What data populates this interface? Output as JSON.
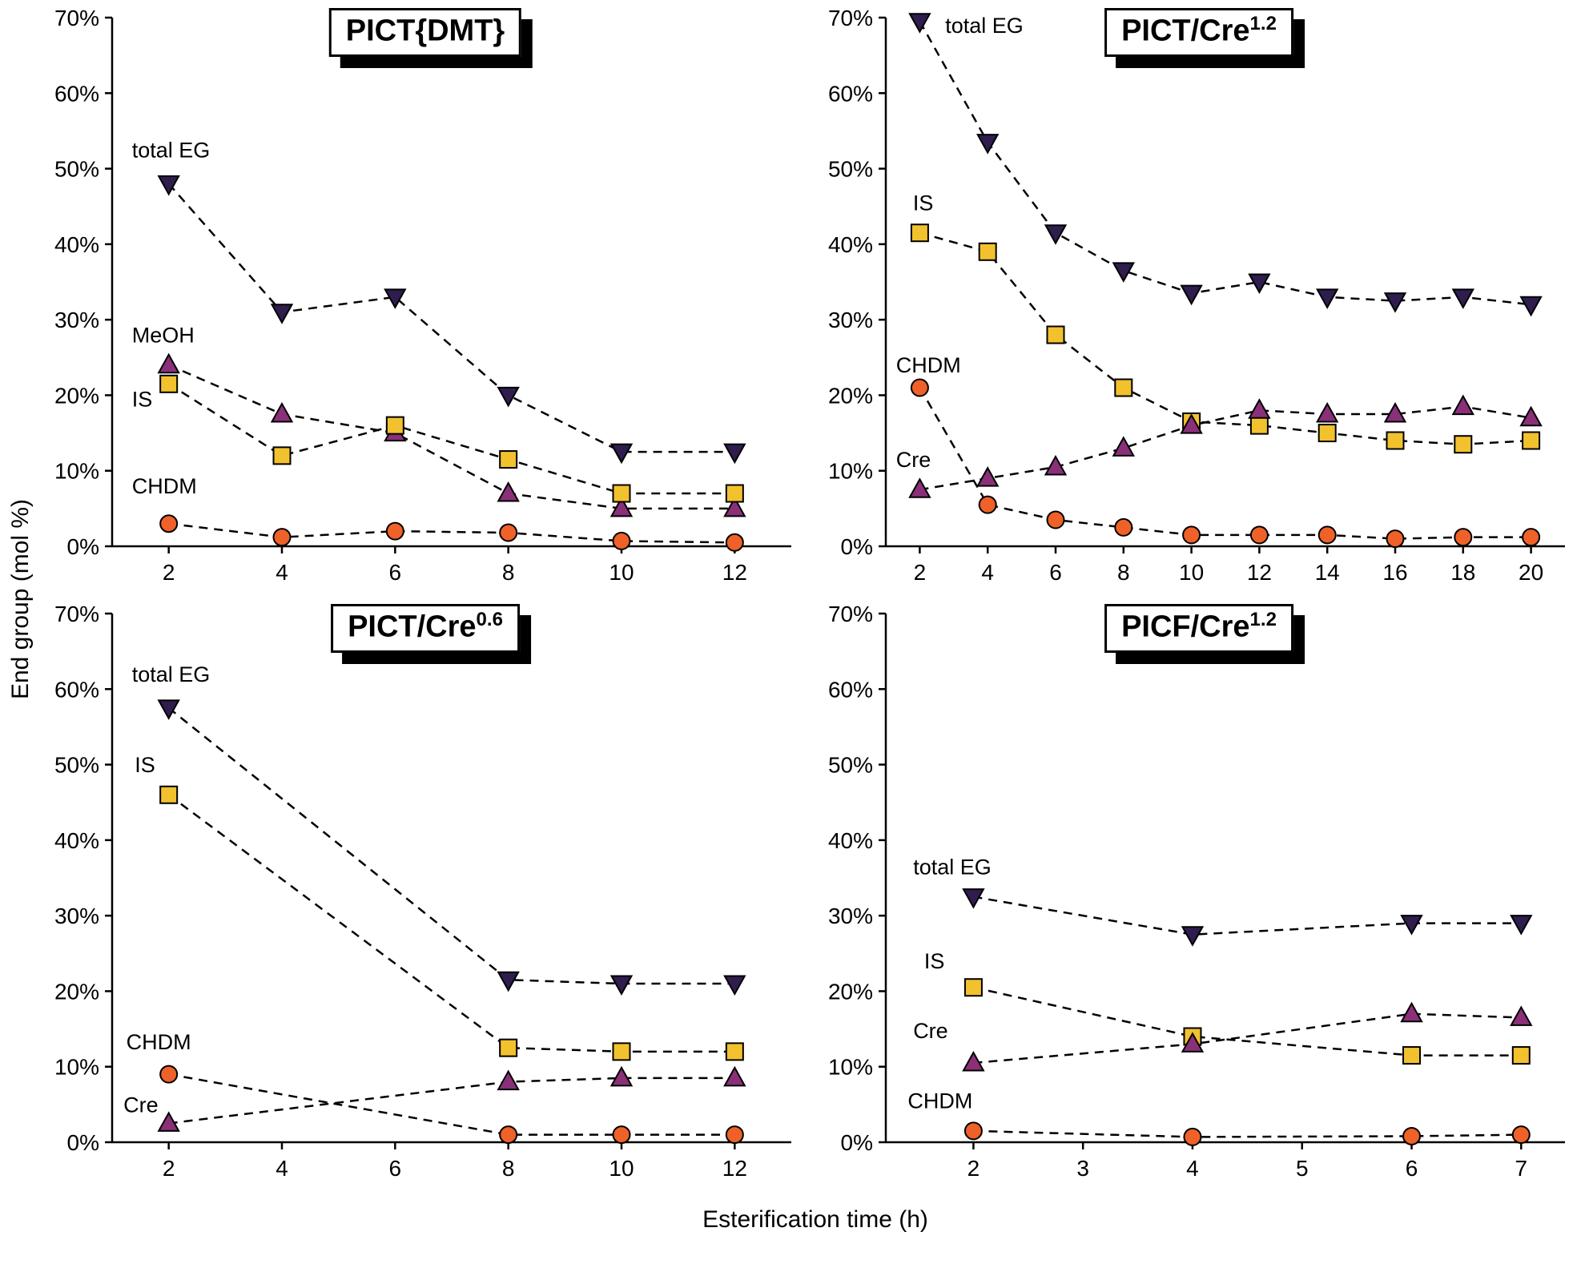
{
  "page": {
    "y_axis_title": "End group (mol %)",
    "x_axis_title": "Esterification time (h)"
  },
  "colors": {
    "total_eg": "#2f1d4e",
    "meoh_cre": "#8a3078",
    "is": "#f2c12e",
    "chdm": "#ee6128"
  },
  "chart_data": [
    {
      "type": "line",
      "title_main": "PICT{DMT}",
      "title_sup": "",
      "xlabel": "Esterification time (h)",
      "ylabel": "End group (mol %)",
      "xlim": [
        1,
        13
      ],
      "ylim": [
        0,
        70
      ],
      "xticks": [
        2,
        4,
        6,
        8,
        10,
        12
      ],
      "yticks": [
        0,
        10,
        20,
        30,
        40,
        50,
        60,
        70
      ],
      "ytick_suffix": "%",
      "grid": false,
      "legend": "inline-labels",
      "series": [
        {
          "name": "total EG",
          "marker": "triangle-down",
          "color": "#2f1d4e",
          "x": [
            2,
            4,
            6,
            8,
            10,
            12
          ],
          "y": [
            48,
            31,
            33,
            20,
            12.5,
            12.5
          ],
          "label": {
            "text": "total EG",
            "x": 1.35,
            "y": 51.5
          }
        },
        {
          "name": "MeOH",
          "marker": "triangle-up",
          "color": "#8a3078",
          "x": [
            2,
            4,
            6,
            8,
            10,
            12
          ],
          "y": [
            24,
            17.5,
            15,
            7,
            5,
            5
          ],
          "label": {
            "text": "MeOH",
            "x": 1.35,
            "y": 27
          }
        },
        {
          "name": "IS",
          "marker": "square",
          "color": "#f2c12e",
          "x": [
            2,
            4,
            6,
            8,
            10,
            12
          ],
          "y": [
            21.5,
            12,
            16,
            11.5,
            7,
            7
          ],
          "label": {
            "text": "IS",
            "x": 1.35,
            "y": 18.5
          }
        },
        {
          "name": "CHDM",
          "marker": "circle",
          "color": "#ee6128",
          "x": [
            2,
            4,
            6,
            8,
            10,
            12
          ],
          "y": [
            3,
            1.2,
            2,
            1.8,
            0.7,
            0.5
          ],
          "label": {
            "text": "CHDM",
            "x": 1.35,
            "y": 7
          }
        }
      ]
    },
    {
      "type": "line",
      "title_main": "PICT/Cre",
      "title_sup": "1.2",
      "xlabel": "Esterification time (h)",
      "ylabel": "End group (mol %)",
      "xlim": [
        1,
        21
      ],
      "ylim": [
        0,
        70
      ],
      "xticks": [
        2,
        4,
        6,
        8,
        10,
        12,
        14,
        16,
        18,
        20
      ],
      "yticks": [
        0,
        10,
        20,
        30,
        40,
        50,
        60,
        70
      ],
      "ytick_suffix": "%",
      "grid": false,
      "legend": "inline-labels",
      "series": [
        {
          "name": "total EG",
          "marker": "triangle-down",
          "color": "#2f1d4e",
          "x": [
            2,
            4,
            6,
            8,
            10,
            12,
            14,
            16,
            18,
            20
          ],
          "y": [
            69.5,
            53.5,
            41.5,
            36.5,
            33.5,
            35,
            33,
            32.5,
            33,
            32
          ],
          "label": {
            "text": "total EG",
            "x": 2.75,
            "y": 68
          }
        },
        {
          "name": "IS",
          "marker": "square",
          "color": "#f2c12e",
          "x": [
            2,
            4,
            6,
            8,
            10,
            12,
            14,
            16,
            18,
            20
          ],
          "y": [
            41.5,
            39,
            28,
            21,
            16.5,
            16,
            15,
            14,
            13.5,
            14
          ],
          "label": {
            "text": "IS",
            "x": 1.8,
            "y": 44.5
          }
        },
        {
          "name": "Cre",
          "marker": "triangle-up",
          "color": "#8a3078",
          "x": [
            2,
            4,
            6,
            8,
            10,
            12,
            14,
            16,
            18,
            20
          ],
          "y": [
            7.5,
            9,
            10.5,
            13,
            16,
            18,
            17.5,
            17.5,
            18.5,
            17
          ],
          "label": {
            "text": "Cre",
            "x": 1.3,
            "y": 10.5
          }
        },
        {
          "name": "CHDM",
          "marker": "circle",
          "color": "#ee6128",
          "x": [
            2,
            4,
            6,
            8,
            10,
            12,
            14,
            16,
            18,
            20
          ],
          "y": [
            21,
            5.5,
            3.5,
            2.5,
            1.5,
            1.5,
            1.5,
            1,
            1.2,
            1.2
          ],
          "label": {
            "text": "CHDM",
            "x": 1.3,
            "y": 23
          }
        }
      ]
    },
    {
      "type": "line",
      "title_main": "PICT/Cre",
      "title_sup": "0.6",
      "xlabel": "Esterification time (h)",
      "ylabel": "End group (mol %)",
      "xlim": [
        1,
        13
      ],
      "ylim": [
        0,
        70
      ],
      "xticks": [
        2,
        4,
        6,
        8,
        10,
        12
      ],
      "yticks": [
        0,
        10,
        20,
        30,
        40,
        50,
        60,
        70
      ],
      "ytick_suffix": "%",
      "grid": false,
      "legend": "inline-labels",
      "series": [
        {
          "name": "total EG",
          "marker": "triangle-down",
          "color": "#2f1d4e",
          "x": [
            2,
            8,
            10,
            12
          ],
          "y": [
            57.5,
            21.5,
            21,
            21
          ],
          "label": {
            "text": "total EG",
            "x": 1.35,
            "y": 61
          }
        },
        {
          "name": "IS",
          "marker": "square",
          "color": "#f2c12e",
          "x": [
            2,
            8,
            10,
            12
          ],
          "y": [
            46,
            12.5,
            12,
            12
          ],
          "label": {
            "text": "IS",
            "x": 1.4,
            "y": 49
          }
        },
        {
          "name": "CHDM",
          "marker": "circle",
          "color": "#ee6128",
          "x": [
            2,
            8,
            10,
            12
          ],
          "y": [
            9,
            1,
            1,
            1
          ],
          "label": {
            "text": "CHDM",
            "x": 1.25,
            "y": 12.3
          }
        },
        {
          "name": "Cre",
          "marker": "triangle-up",
          "color": "#8a3078",
          "x": [
            2,
            8,
            10,
            12
          ],
          "y": [
            2.5,
            8,
            8.5,
            8.5
          ],
          "label": {
            "text": "Cre",
            "x": 1.2,
            "y": 4
          }
        }
      ]
    },
    {
      "type": "line",
      "title_main": "PICF/Cre",
      "title_sup": "1.2",
      "xlabel": "Esterification time (h)",
      "ylabel": "End group (mol %)",
      "xlim": [
        1.2,
        7.4
      ],
      "ylim": [
        0,
        70
      ],
      "xticks": [
        2,
        3,
        4,
        5,
        6,
        7
      ],
      "yticks": [
        0,
        10,
        20,
        30,
        40,
        50,
        60,
        70
      ],
      "ytick_suffix": "%",
      "grid": false,
      "legend": "inline-labels",
      "series": [
        {
          "name": "total EG",
          "marker": "triangle-down",
          "color": "#2f1d4e",
          "x": [
            2,
            4,
            6,
            7
          ],
          "y": [
            32.5,
            27.5,
            29,
            29
          ],
          "label": {
            "text": "total EG",
            "x": 1.45,
            "y": 35.5
          }
        },
        {
          "name": "IS",
          "marker": "square",
          "color": "#f2c12e",
          "x": [
            2,
            4,
            6,
            7
          ],
          "y": [
            20.5,
            14,
            11.5,
            11.5
          ],
          "label": {
            "text": "IS",
            "x": 1.55,
            "y": 23
          }
        },
        {
          "name": "Cre",
          "marker": "triangle-up",
          "color": "#8a3078",
          "x": [
            2,
            4,
            6,
            7
          ],
          "y": [
            10.5,
            13,
            17,
            16.5
          ],
          "label": {
            "text": "Cre",
            "x": 1.45,
            "y": 13.8
          }
        },
        {
          "name": "CHDM",
          "marker": "circle",
          "color": "#ee6128",
          "x": [
            2,
            4,
            6,
            7
          ],
          "y": [
            1.5,
            0.7,
            0.8,
            1
          ],
          "label": {
            "text": "CHDM",
            "x": 1.4,
            "y": 4.5
          }
        }
      ]
    }
  ]
}
